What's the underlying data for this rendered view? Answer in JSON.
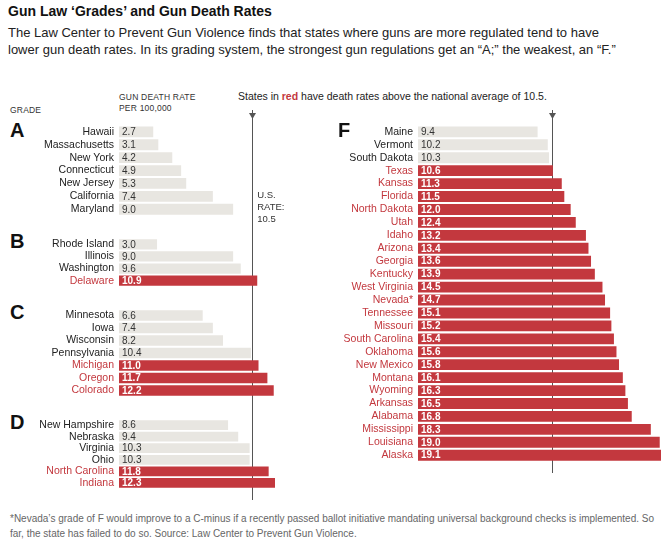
{
  "title": "Gun Law ‘Grades’ and Gun Death Rates",
  "subtitle": "The Law Center to Prevent Gun Violence finds that states where guns are more regulated tend to have lower gun death rates. In its grading system, the strongest gun regulations get an “A;” the weakest, an “F.”",
  "grade_header": "GRADE",
  "value_header": "GUN DEATH RATE PER 100,000",
  "note": "States in red have death rates above the national average of 10.5.",
  "note_highlight": "red",
  "reference_line": {
    "value": 10.5,
    "label": "U.S. RATE: 10.5"
  },
  "footnote": "*Nevada’s grade of F would improve to a C-minus if a recently passed ballot initiative mandating universal background checks is implemented. So far, the state has failed to do so. Source: Law Center to Prevent Gun Violence.",
  "chart_data": [
    {
      "type": "bar",
      "orientation": "horizontal",
      "title": "A",
      "categories": [
        "Hawaii",
        "Massachusetts",
        "New York",
        "Connecticut",
        "New Jersey",
        "California",
        "Maryland"
      ],
      "values": [
        2.7,
        3.1,
        4.2,
        4.9,
        5.3,
        7.4,
        9.0
      ],
      "value_labels": [
        "2.7",
        "3.1",
        "4.2",
        "4.9",
        "5.3",
        "7.4",
        "9.0"
      ],
      "colors": [
        "#e8e6e1",
        "#e8e6e1",
        "#e8e6e1",
        "#e8e6e1",
        "#e8e6e1",
        "#e8e6e1",
        "#e8e6e1"
      ],
      "xlim": [
        0,
        12.3
      ],
      "tick_labels": "y",
      "grid": false,
      "data_labels": true
    },
    {
      "type": "bar",
      "orientation": "horizontal",
      "title": "B",
      "categories": [
        "Rhode Island",
        "Illinois",
        "Washington",
        "Delaware"
      ],
      "values": [
        3.0,
        9.0,
        9.6,
        10.9
      ],
      "value_labels": [
        "3.0",
        "9.0",
        "9.6",
        "10.9"
      ],
      "colors": [
        "#e8e6e1",
        "#e8e6e1",
        "#e8e6e1",
        "#c3383e"
      ],
      "xlim": [
        0,
        12.3
      ],
      "tick_labels": "y",
      "grid": false,
      "data_labels": true
    },
    {
      "type": "bar",
      "orientation": "horizontal",
      "title": "C",
      "categories": [
        "Minnesota",
        "Iowa",
        "Wisconsin",
        "Pennsylvania",
        "Michigan",
        "Oregon",
        "Colorado"
      ],
      "values": [
        6.6,
        7.4,
        8.2,
        10.4,
        11.0,
        11.7,
        12.2
      ],
      "value_labels": [
        "6.6",
        "7.4",
        "8.2",
        "10.4",
        "11.0",
        "11.7",
        "12.2"
      ],
      "colors": [
        "#e8e6e1",
        "#e8e6e1",
        "#e8e6e1",
        "#e8e6e1",
        "#c3383e",
        "#c3383e",
        "#c3383e"
      ],
      "xlim": [
        0,
        12.3
      ],
      "tick_labels": "y",
      "grid": false,
      "data_labels": true
    },
    {
      "type": "bar",
      "orientation": "horizontal",
      "title": "D",
      "categories": [
        "New Hampshire",
        "Nebraska",
        "Virginia",
        "Ohio",
        "North Carolina",
        "Indiana"
      ],
      "values": [
        8.6,
        9.4,
        10.3,
        10.3,
        11.8,
        12.3
      ],
      "value_labels": [
        "8.6",
        "9.4",
        "10.3",
        "10.3",
        "11.8",
        "12.3"
      ],
      "colors": [
        "#e8e6e1",
        "#e8e6e1",
        "#e8e6e1",
        "#e8e6e1",
        "#c3383e",
        "#c3383e"
      ],
      "xlim": [
        0,
        12.3
      ],
      "tick_labels": "y",
      "grid": false,
      "data_labels": true
    },
    {
      "type": "bar",
      "orientation": "horizontal",
      "title": "F",
      "categories": [
        "Maine",
        "Vermont",
        "South Dakota",
        "Texas",
        "Kansas",
        "Florida",
        "North Dakota",
        "Utah",
        "Idaho",
        "Arizona",
        "Georgia",
        "Kentucky",
        "West Virginia",
        "Nevada*",
        "Tennessee",
        "Missouri",
        "South Carolina",
        "Oklahoma",
        "New Mexico",
        "Montana",
        "Wyoming",
        "Arkansas",
        "Alabama",
        "Mississippi",
        "Louisiana",
        "Alaska"
      ],
      "values": [
        9.4,
        10.2,
        10.3,
        10.6,
        11.3,
        11.5,
        12.0,
        12.4,
        13.2,
        13.4,
        13.6,
        13.9,
        14.5,
        14.7,
        15.1,
        15.2,
        15.4,
        15.6,
        15.8,
        16.1,
        16.3,
        16.5,
        16.8,
        18.3,
        19.0,
        19.1
      ],
      "value_labels": [
        "9.4",
        "10.2",
        "10.3",
        "10.6",
        "11.3",
        "11.5",
        "12.0",
        "12.4",
        "13.2",
        "13.4",
        "13.6",
        "13.9",
        "14.5",
        "14.7",
        "15.1",
        "15.2",
        "15.4",
        "15.6",
        "15.8",
        "16.1",
        "16.3",
        "16.5",
        "16.8",
        "18.3",
        "19.0",
        "19.1"
      ],
      "colors": [
        "#e8e6e1",
        "#e8e6e1",
        "#e8e6e1",
        "#c3383e",
        "#c3383e",
        "#c3383e",
        "#c3383e",
        "#c3383e",
        "#c3383e",
        "#c3383e",
        "#c3383e",
        "#c3383e",
        "#c3383e",
        "#c3383e",
        "#c3383e",
        "#c3383e",
        "#c3383e",
        "#c3383e",
        "#c3383e",
        "#c3383e",
        "#c3383e",
        "#c3383e",
        "#c3383e",
        "#c3383e",
        "#c3383e",
        "#c3383e"
      ],
      "xlim": [
        0,
        19.1
      ],
      "tick_labels": "y",
      "grid": false,
      "data_labels": true
    }
  ]
}
